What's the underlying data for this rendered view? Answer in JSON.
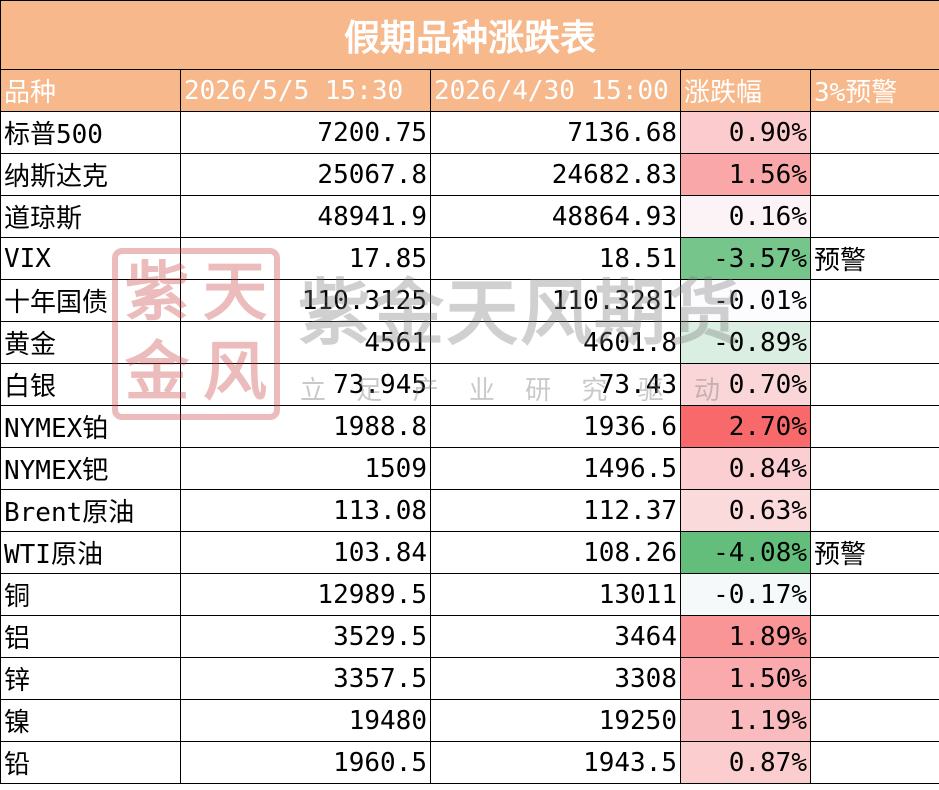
{
  "table": {
    "title": "假期品种涨跌表",
    "header": [
      "品种",
      "2026/5/5 15:30",
      "2026/4/30 15:00",
      "涨跌幅",
      "3%预警"
    ],
    "rows": [
      [
        "标普500",
        "7200.75",
        "7136.68",
        "0.90%",
        null
      ],
      [
        "纳斯达克",
        "25067.8",
        "24682.83",
        "1.56%",
        null
      ],
      [
        "道琼斯",
        "48941.9",
        "48864.93",
        "0.16%",
        null
      ],
      [
        "VIX",
        "17.85",
        "18.51",
        "-3.57%",
        "预警"
      ],
      [
        "十年国债",
        "110.3125",
        "110.3281",
        "-0.01%",
        null
      ],
      [
        "黄金",
        "4561",
        "4601.8",
        "-0.89%",
        null
      ],
      [
        "白银",
        "73.945",
        "73.43",
        "0.70%",
        null
      ],
      [
        "NYMEX铂",
        "1988.8",
        "1936.6",
        "2.70%",
        null
      ],
      [
        "NYMEX钯",
        "1509",
        "1496.5",
        "0.84%",
        null
      ],
      [
        "Brent原油",
        "113.08",
        "112.37",
        "0.63%",
        null
      ],
      [
        "WTI原油",
        "103.84",
        "108.26",
        "-4.08%",
        "预警"
      ],
      [
        "铜",
        "12989.5",
        "13011",
        "-0.17%",
        null
      ],
      [
        "铝",
        "3529.5",
        "3464",
        "1.89%",
        null
      ],
      [
        "锌",
        "3357.5",
        "3308",
        "1.50%",
        null
      ],
      [
        "镍",
        "19480",
        "19250",
        "1.19%",
        null
      ],
      [
        "铅",
        "1960.5",
        "1943.5",
        "0.87%",
        null
      ]
    ]
  },
  "watermark": {
    "seal": [
      "紫",
      "天",
      "金",
      "风"
    ],
    "name": "紫金天风期货",
    "slogan": [
      "立",
      "足",
      "产",
      "业",
      "研",
      "究",
      "驱",
      "动"
    ]
  }
}
